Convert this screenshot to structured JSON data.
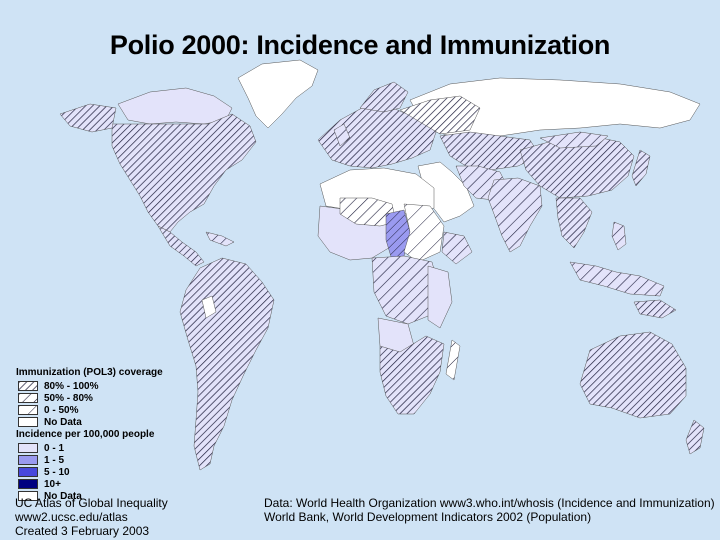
{
  "title": "Polio 2000: Incidence and Immunization",
  "legend": {
    "immunization": {
      "heading": "Immunization (POL3) coverage",
      "items": [
        {
          "label": "80% - 100%",
          "pattern": "dense-hatch"
        },
        {
          "label": "50% - 80%",
          "pattern": "medium-hatch"
        },
        {
          "label": "0 - 50%",
          "pattern": "sparse-hatch"
        },
        {
          "label": "No Data",
          "pattern": "none"
        }
      ]
    },
    "incidence": {
      "heading": "Incidence per 100,000 people",
      "items": [
        {
          "label": "0 - 1",
          "color": "#e3e3fa"
        },
        {
          "label": "1 - 5",
          "color": "#9a9af0"
        },
        {
          "label": "5 - 10",
          "color": "#4848dc"
        },
        {
          "label": "10+",
          "color": "#000080"
        },
        {
          "label": "No Data",
          "color": "#ffffff"
        }
      ]
    }
  },
  "colors": {
    "ocean": "#cfe3f5",
    "land_no_data": "#ffffff",
    "land_low_incidence": "#e3e3fa",
    "hatch": "#1e1e3c"
  },
  "credits": {
    "left": [
      "UC Atlas of Global Inequality",
      "www2.ucsc.edu/atlas",
      "Created 3 February 2003"
    ],
    "right": [
      "Data: World Health Organization www3.who.int/whosis (Incidence and Immunization)",
      "World Bank, World Development Indicators 2002 (Population)"
    ]
  }
}
